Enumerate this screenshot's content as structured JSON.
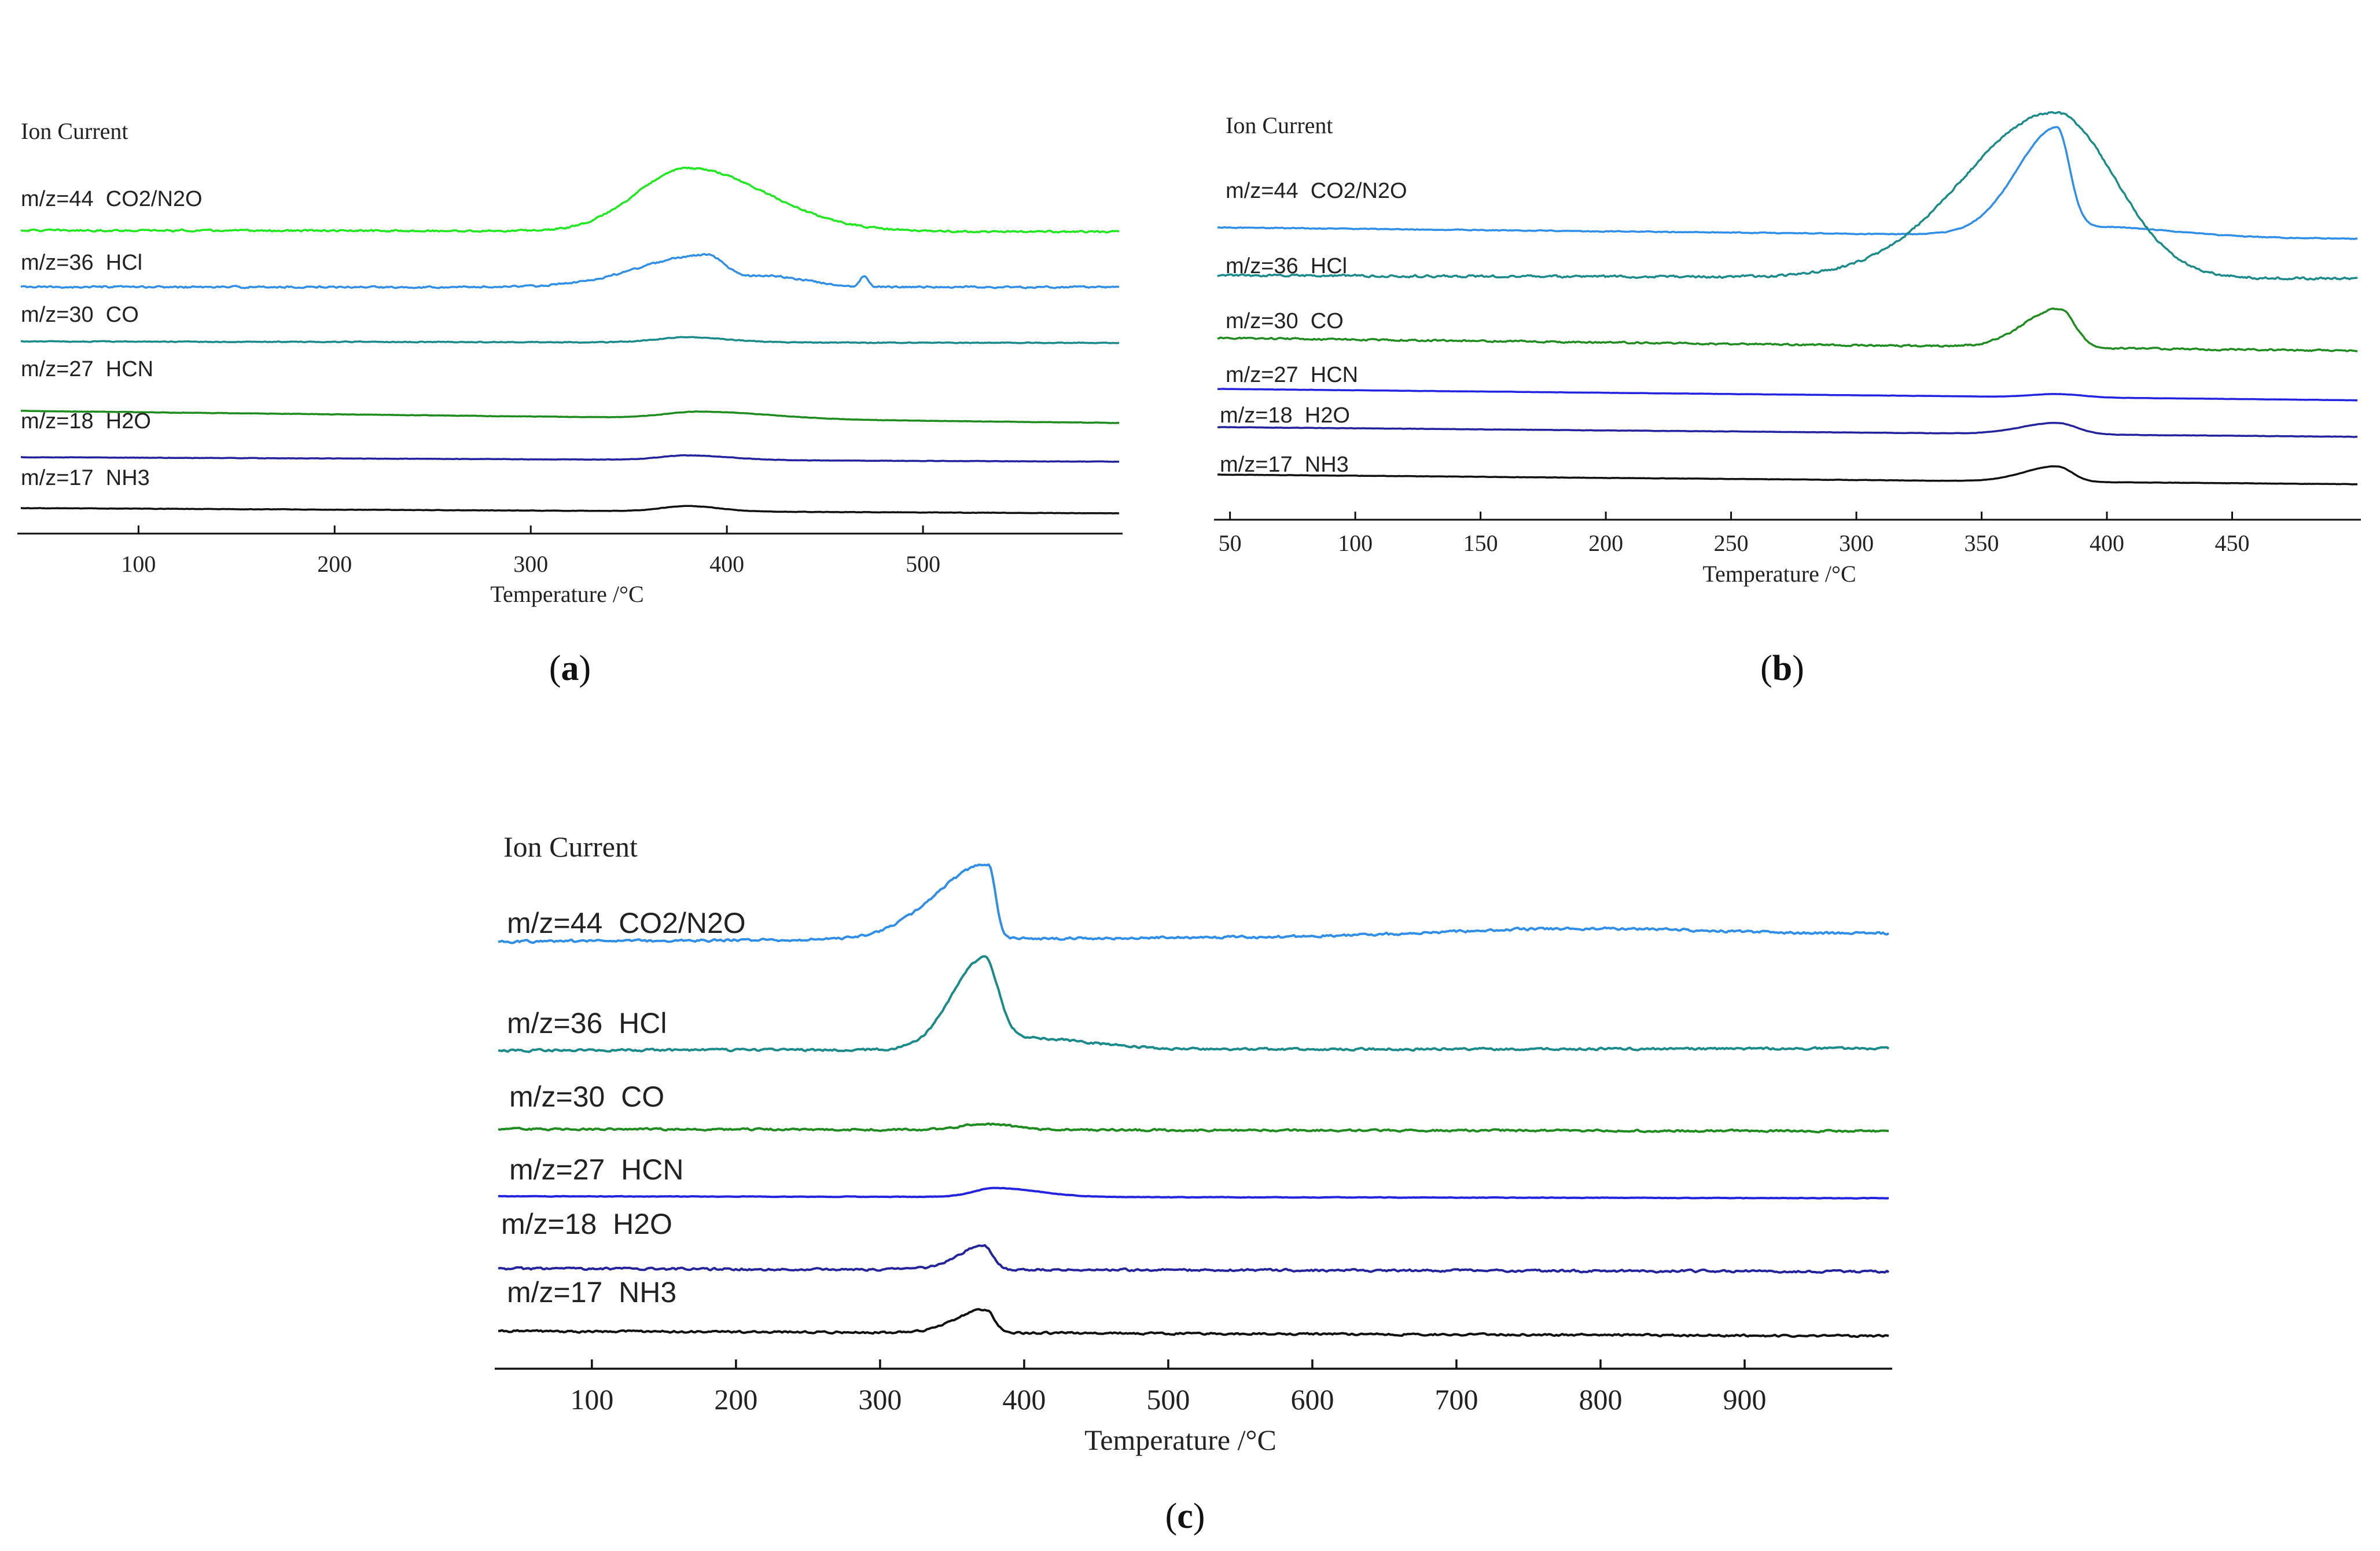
{
  "chart_data": [
    {
      "type": "line",
      "panel_caption": {
        "open": "(",
        "letter": "a",
        "close": ")"
      },
      "ylabel": "Ion Current",
      "xlabel": "Temperature /°C",
      "xlim": [
        40,
        600
      ],
      "xticks": [
        100,
        200,
        300,
        400,
        500
      ],
      "series": [
        {
          "name": "m/z=44  CO2/N2O",
          "color": "#1ee81e",
          "baseline_start": 9.3,
          "baseline_end": 9.2,
          "noise": 0.09,
          "peaks": [
            {
              "center": 380,
              "height": 4.2,
              "width_left": 26,
              "width_right": 40
            }
          ]
        },
        {
          "name": "m/z=36  HCl",
          "color": "#2f8fe8",
          "baseline_start": 7.5,
          "baseline_end": 7.5,
          "noise": 0.09,
          "peaks": [
            {
              "center": 390,
              "height": 2.15,
              "width_left": 34,
              "width_right": 10
            },
            {
              "center": 420,
              "height": 0.75,
              "width_left": 10,
              "width_right": 20
            },
            {
              "center": 470,
              "height": 0.7,
              "width_left": 2,
              "width_right": 2
            }
          ]
        },
        {
          "name": "m/z=30  CO",
          "color": "#1a8a8a",
          "baseline_start": 5.7,
          "baseline_end": 5.6,
          "noise": 0.04,
          "peaks": [
            {
              "center": 380,
              "height": 0.35,
              "width_left": 15,
              "width_right": 20
            }
          ]
        },
        {
          "name": "m/z=27  HCN",
          "color": "#1e8c1e",
          "baseline_start": 4.1,
          "baseline_end": 3.3,
          "noise": 0.02,
          "peaks": [
            {
              "center": 387,
              "height": 0.45,
              "width_left": 18,
              "width_right": 35
            }
          ]
        },
        {
          "name": "m/z=18  H2O",
          "color": "#23239e",
          "baseline_start": 2.3,
          "baseline_end": 2.0,
          "noise": 0.02,
          "peaks": [
            {
              "center": 380,
              "height": 0.3,
              "width_left": 14,
              "width_right": 22
            }
          ]
        },
        {
          "name": "m/z=17  NH3",
          "color": "#111111",
          "baseline_start": 0.95,
          "baseline_end": 0.6,
          "noise": 0.02,
          "peaks": [
            {
              "center": 380,
              "height": 0.35,
              "width_left": 13,
              "width_right": 16
            }
          ]
        }
      ]
    },
    {
      "type": "line",
      "panel_caption": {
        "open": "(",
        "letter": "b",
        "close": ")"
      },
      "ylabel": "Ion Current",
      "xlabel": "Temperature /°C",
      "xlim": [
        45,
        500
      ],
      "xticks": [
        50,
        100,
        150,
        200,
        250,
        300,
        350,
        400,
        450
      ],
      "series": [
        {
          "name": "m/z=44  CO2/N2O",
          "color": "#2f8fe8",
          "baseline_start": 9.0,
          "baseline_end": 8.3,
          "noise": 0.04,
          "peaks": [
            {
              "center": 380,
              "height": 6.2,
              "width_left": 16,
              "width_right": 5
            },
            {
              "center": 395,
              "height": 0.6,
              "width_left": 25,
              "width_right": 30
            }
          ]
        },
        {
          "name": "m/z=36  HCl",
          "color": "#1a8a8a",
          "baseline_start": 6.6,
          "baseline_end": 6.4,
          "noise": 0.11,
          "peaks": [
            {
              "center": 379,
              "height": 10.2,
              "width_left": 36,
              "width_right": 24
            }
          ]
        },
        {
          "name": "m/z=30  CO",
          "color": "#1e8c1e",
          "baseline_start": 4.4,
          "baseline_end": 3.6,
          "noise": 0.08,
          "peaks": [
            {
              "center": 381,
              "height": 2.4,
              "width_left": 14,
              "width_right": 6
            }
          ]
        },
        {
          "name": "m/z=27  HCN",
          "color": "#2323e0",
          "baseline_start": 2.6,
          "baseline_end": 1.9,
          "noise": 0.01,
          "peaks": [
            {
              "center": 380,
              "height": 0.2,
              "width_left": 10,
              "width_right": 10
            }
          ]
        },
        {
          "name": "m/z=18  H2O",
          "color": "#23239e",
          "baseline_start": 1.4,
          "baseline_end": 0.8,
          "noise": 0.015,
          "peaks": [
            {
              "center": 380,
              "height": 0.7,
              "width_left": 14,
              "width_right": 8
            }
          ]
        },
        {
          "name": "m/z=17  NH3",
          "color": "#111111",
          "baseline_start": 0.05,
          "baseline_end": -0.55,
          "noise": 0.015,
          "peaks": [
            {
              "center": 380,
              "height": 0.95,
              "width_left": 13,
              "width_right": 6
            }
          ]
        }
      ]
    },
    {
      "type": "line",
      "panel_caption": {
        "open": "(",
        "letter": "c",
        "close": ")"
      },
      "ylabel": "Ion Current",
      "xlabel": "Temperature /°C",
      "xlim": [
        35,
        1000
      ],
      "xticks": [
        100,
        200,
        300,
        400,
        500,
        600,
        700,
        800,
        900
      ],
      "series": [
        {
          "name": "m/z=44  CO2/N2O",
          "color": "#2f8fe8",
          "baseline_start": 10.2,
          "baseline_end": 10.6,
          "noise": 0.1,
          "peaks": [
            {
              "center": 375,
              "height": 3.8,
              "width_left": 36,
              "width_right": 5
            },
            {
              "center": 780,
              "height": 0.35,
              "width_left": 90,
              "width_right": 90
            }
          ]
        },
        {
          "name": "m/z=36  HCl",
          "color": "#1a8a8a",
          "baseline_start": 6.9,
          "baseline_end": 7.0,
          "noise": 0.09,
          "peaks": [
            {
              "center": 372,
              "height": 4.6,
              "width_left": 22,
              "width_right": 10
            },
            {
              "center": 400,
              "height": 0.6,
              "width_left": 15,
              "width_right": 45
            }
          ]
        },
        {
          "name": "m/z=30  CO",
          "color": "#1e8c1e",
          "baseline_start": 4.4,
          "baseline_end": 4.3,
          "noise": 0.08,
          "peaks": [
            {
              "center": 372,
              "height": 0.3,
              "width_left": 15,
              "width_right": 20
            }
          ]
        },
        {
          "name": "m/z=27  HCN",
          "color": "#2323e0",
          "baseline_start": 2.6,
          "baseline_end": 2.5,
          "noise": 0.02,
          "peaks": [
            {
              "center": 380,
              "height": 0.45,
              "width_left": 15,
              "width_right": 30
            }
          ]
        },
        {
          "name": "m/z=18  H2O",
          "color": "#23239e",
          "baseline_start": 1.1,
          "baseline_end": 0.95,
          "noise": 0.09,
          "peaks": [
            {
              "center": 372,
              "height": 1.2,
              "width_left": 18,
              "width_right": 6
            }
          ]
        },
        {
          "name": "m/z=17  NH3",
          "color": "#111111",
          "baseline_start": -0.5,
          "baseline_end": -0.75,
          "noise": 0.08,
          "peaks": [
            {
              "center": 373,
              "height": 1.2,
              "width_left": 20,
              "width_right": 6
            }
          ]
        }
      ]
    }
  ]
}
